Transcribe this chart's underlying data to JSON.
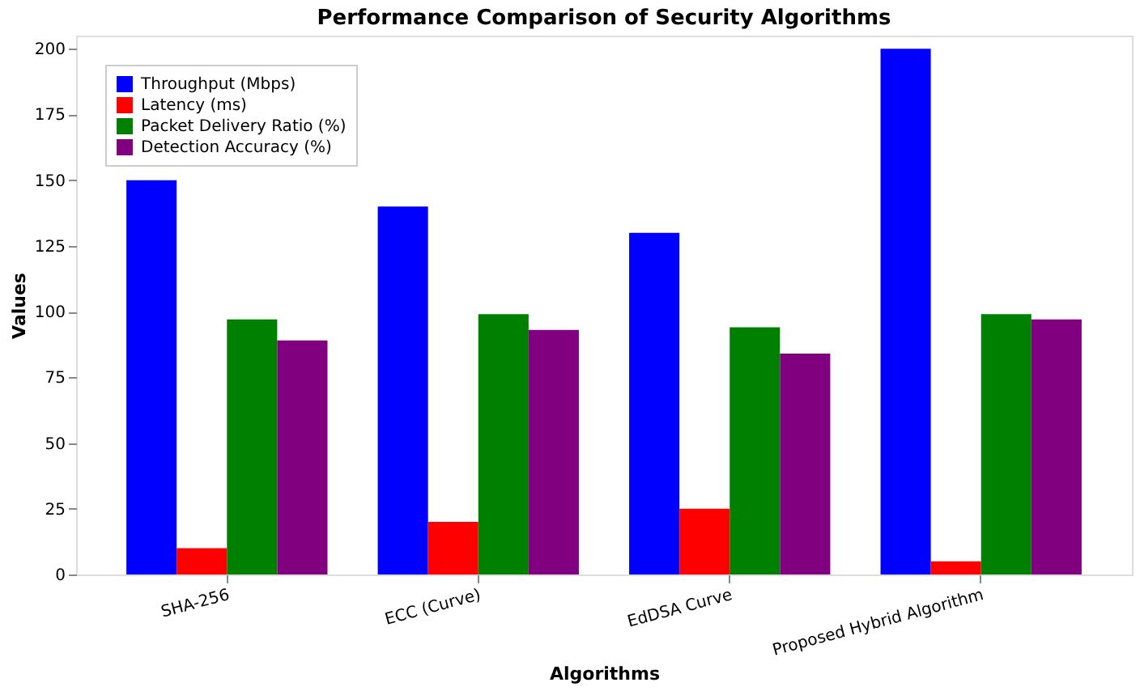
{
  "chart_data": {
    "type": "bar",
    "title": "Performance Comparison of Security Algorithms",
    "xlabel": "Algorithms",
    "ylabel": "Values",
    "categories": [
      "SHA-256",
      "ECC (Curve)",
      "EdDSA Curve",
      "Proposed Hybrid Algorithm"
    ],
    "series": [
      {
        "name": "Throughput (Mbps)",
        "color": "#0000ff",
        "values": [
          150,
          140,
          130,
          200
        ]
      },
      {
        "name": "Latency (ms)",
        "color": "#ff0000",
        "values": [
          10,
          20,
          25,
          5
        ]
      },
      {
        "name": "Packet Delivery Ratio (%)",
        "color": "#008000",
        "values": [
          97,
          99,
          94,
          99
        ]
      },
      {
        "name": "Detection Accuracy (%)",
        "color": "#800080",
        "values": [
          89,
          93,
          84,
          97
        ]
      }
    ],
    "ylim": [
      0,
      205
    ],
    "yticks": [
      0,
      25,
      50,
      75,
      100,
      125,
      150,
      175,
      200
    ],
    "grid": false,
    "legend": "top left"
  }
}
